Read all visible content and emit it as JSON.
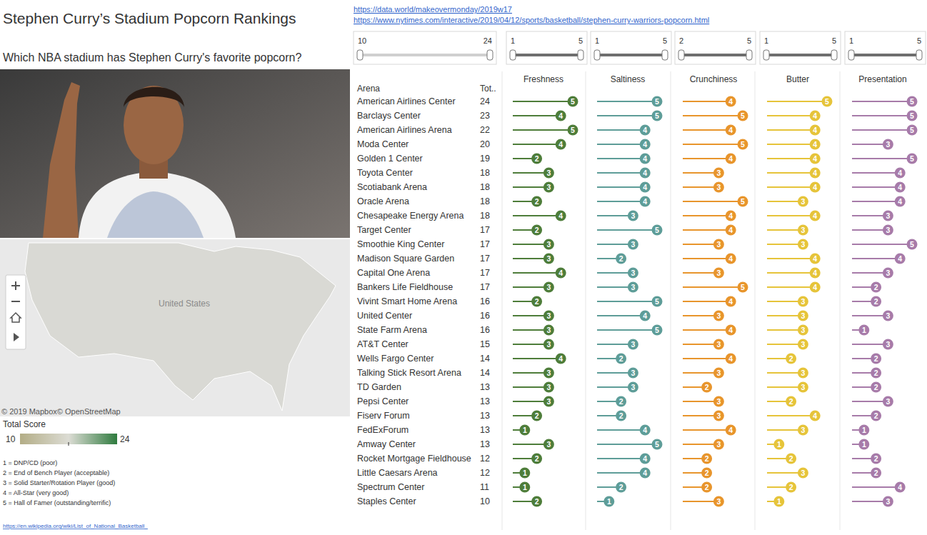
{
  "chart_data": {
    "type": "lollipop",
    "title": "Stephen Curry’s Stadium Popcorn Rankings",
    "subtitle": "Which NBA stadium has Stephen Curry's favorite popcorn?",
    "category_label": "Arena",
    "categories": [
      "American Airlines Center",
      "Barclays Center",
      "American Airlines Arena",
      "Moda Center",
      "Golden 1 Center",
      "Toyota Center",
      "Scotiabank Arena",
      "Oracle Arena",
      "Chesapeake Energy Arena",
      "Target Center",
      "Smoothie King Center",
      "Madison Square Garden",
      "Capital One Arena",
      "Bankers Life Fieldhouse",
      "Vivint Smart Home Arena",
      "United Center",
      "State Farm Arena",
      "AT&T Center",
      "Wells Fargo Center",
      "Talking Stick Resort Arena",
      "TD Garden",
      "Pepsi Center",
      "Fiserv Forum",
      "FedExForum",
      "Amway Center",
      "Rocket Mortgage Fieldhouse",
      "Little Caesars Arena",
      "Spectrum Center",
      "Staples Center"
    ],
    "total": {
      "label": "Tot..",
      "values": [
        24,
        23,
        22,
        20,
        19,
        18,
        18,
        18,
        18,
        17,
        17,
        17,
        17,
        17,
        16,
        16,
        16,
        15,
        14,
        14,
        13,
        13,
        13,
        13,
        13,
        12,
        12,
        11,
        10
      ]
    },
    "series": [
      {
        "name": "Freshness",
        "color": "#4e7d3a",
        "values": [
          5,
          4,
          5,
          4,
          2,
          3,
          3,
          2,
          4,
          2,
          3,
          3,
          4,
          3,
          2,
          3,
          3,
          3,
          4,
          3,
          3,
          3,
          2,
          1,
          3,
          2,
          1,
          1,
          2
        ]
      },
      {
        "name": "Saltiness",
        "color": "#5e9d98",
        "values": [
          5,
          5,
          4,
          4,
          4,
          4,
          4,
          4,
          3,
          5,
          3,
          2,
          3,
          3,
          5,
          4,
          5,
          3,
          2,
          3,
          3,
          2,
          2,
          4,
          5,
          4,
          4,
          2,
          1
        ]
      },
      {
        "name": "Crunchiness",
        "color": "#e8952c",
        "values": [
          4,
          5,
          4,
          5,
          4,
          3,
          3,
          5,
          4,
          4,
          3,
          4,
          3,
          5,
          4,
          3,
          4,
          3,
          4,
          3,
          2,
          3,
          3,
          4,
          3,
          2,
          2,
          2,
          3
        ]
      },
      {
        "name": "Butter",
        "color": "#e6c43a",
        "values": [
          5,
          4,
          4,
          4,
          4,
          4,
          4,
          3,
          4,
          3,
          3,
          4,
          4,
          4,
          3,
          3,
          3,
          3,
          2,
          3,
          3,
          2,
          4,
          3,
          1,
          2,
          3,
          2,
          1
        ]
      },
      {
        "name": "Presentation",
        "color": "#a77ba9",
        "values": [
          5,
          5,
          5,
          3,
          5,
          4,
          4,
          4,
          3,
          3,
          5,
          4,
          3,
          2,
          2,
          3,
          1,
          3,
          2,
          2,
          2,
          3,
          2,
          1,
          1,
          2,
          2,
          4,
          3
        ]
      }
    ],
    "xlim": [
      0,
      5
    ],
    "data_labels": true,
    "tick_labels": false
  },
  "dashboard": {
    "links": [
      "https://data.world/makeovermonday/2019w17",
      "https://www.nytimes.com/interactive/2019/04/12/sports/basketball/stephen-curry-warriors-popcorn.html"
    ],
    "filters": [
      {
        "min": 10,
        "max": 24
      },
      {
        "min": 1,
        "max": 5
      },
      {
        "min": 1,
        "max": 5
      },
      {
        "min": 2,
        "max": 5
      },
      {
        "min": 1,
        "max": 5
      },
      {
        "min": 1,
        "max": 5
      }
    ],
    "map": {
      "country_label": "United States",
      "credit": "© 2019 Mapbox© OpenStreetMap"
    },
    "color_legend": {
      "title": "Total Score",
      "range": [
        10,
        24
      ],
      "colors": [
        "#b3ad86",
        "#dcdcd4",
        "#2f7b3f"
      ]
    },
    "notes": [
      "1 = DNP/CD (poor)",
      "2 = End of Bench Player (acceptable)",
      "3 = Solid Starter/Rotation Player (good)",
      "4 = All-Star (very good)",
      "5 = Hall of Famer (outstanding/terrific)"
    ],
    "footer_link": "https://en.wikipedia.org/wiki/List_of_National_Basketball_"
  }
}
